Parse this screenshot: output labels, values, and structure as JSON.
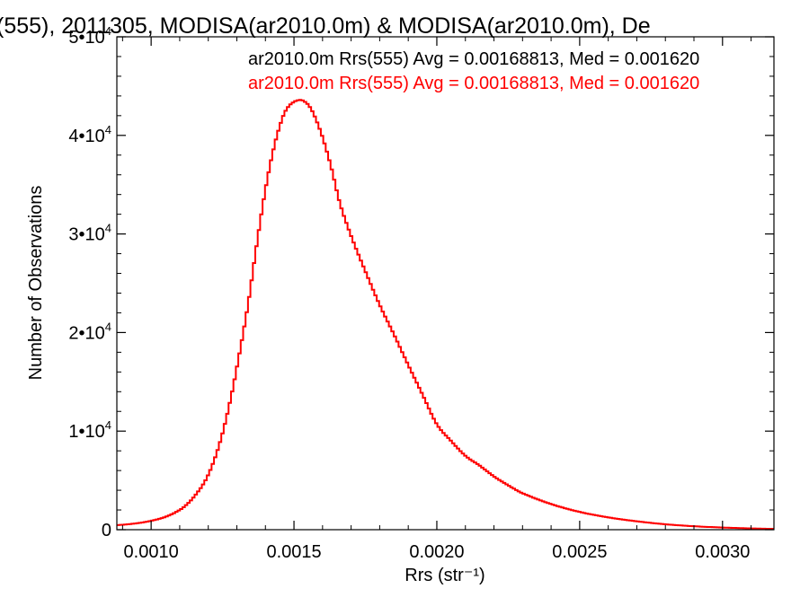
{
  "chart_data": {
    "type": "line",
    "title": "(555), 2011305, MODISA(ar2010.0m) & MODISA(ar2010.0m), De",
    "xlabel": "Rrs (str⁻¹)",
    "ylabel": "Number of Observations",
    "xlim": [
      0.00088,
      0.00318
    ],
    "ylim": [
      0,
      50000
    ],
    "x_ticks": [
      {
        "value": 0.001,
        "label": "0.0010"
      },
      {
        "value": 0.0015,
        "label": "0.0015"
      },
      {
        "value": 0.002,
        "label": "0.0020"
      },
      {
        "value": 0.0025,
        "label": "0.0025"
      },
      {
        "value": 0.003,
        "label": "0.0030"
      }
    ],
    "y_ticks": [
      {
        "value": 0,
        "label": "0"
      },
      {
        "value": 10000,
        "label": "1•10",
        "exp": "4"
      },
      {
        "value": 20000,
        "label": "2•10",
        "exp": "4"
      },
      {
        "value": 30000,
        "label": "3•10",
        "exp": "4"
      },
      {
        "value": 40000,
        "label": "4•10",
        "exp": "4"
      },
      {
        "value": 50000,
        "label": "5•10",
        "exp": "4"
      }
    ],
    "annotations": [
      {
        "text": "ar2010.0m Rrs(555) Avg = 0.00168813, Med = 0.001620",
        "color": "#000000"
      },
      {
        "text": "ar2010.0m Rrs(555) Avg = 0.00168813, Med = 0.001620",
        "color": "#ff0000"
      }
    ],
    "series": [
      {
        "color": "#ff0000",
        "style": "histogram-step",
        "x": [
          0.00088,
          0.00095,
          0.001,
          0.00105,
          0.0011,
          0.00113,
          0.00116,
          0.00119,
          0.00122,
          0.00125,
          0.00128,
          0.00131,
          0.00134,
          0.00137,
          0.0014,
          0.00143,
          0.00146,
          0.00148,
          0.0015,
          0.00152,
          0.00153,
          0.00155,
          0.00157,
          0.0016,
          0.00163,
          0.00166,
          0.0017,
          0.00175,
          0.0018,
          0.00185,
          0.0019,
          0.00195,
          0.002,
          0.00205,
          0.0021,
          0.00215,
          0.0022,
          0.00225,
          0.0023,
          0.0024,
          0.0025,
          0.0026,
          0.0027,
          0.0028,
          0.0029,
          0.003,
          0.0031,
          0.00318
        ],
        "y": [
          450,
          650,
          900,
          1300,
          2000,
          2700,
          3700,
          5000,
          7000,
          9800,
          13500,
          18000,
          23000,
          29000,
          34500,
          38800,
          41800,
          42900,
          43400,
          43600,
          43550,
          43100,
          42100,
          39800,
          36800,
          33200,
          29800,
          26200,
          22800,
          19800,
          16700,
          13700,
          10700,
          9000,
          7500,
          6500,
          5400,
          4500,
          3700,
          2600,
          1800,
          1250,
          850,
          550,
          350,
          220,
          130,
          80
        ]
      }
    ]
  }
}
